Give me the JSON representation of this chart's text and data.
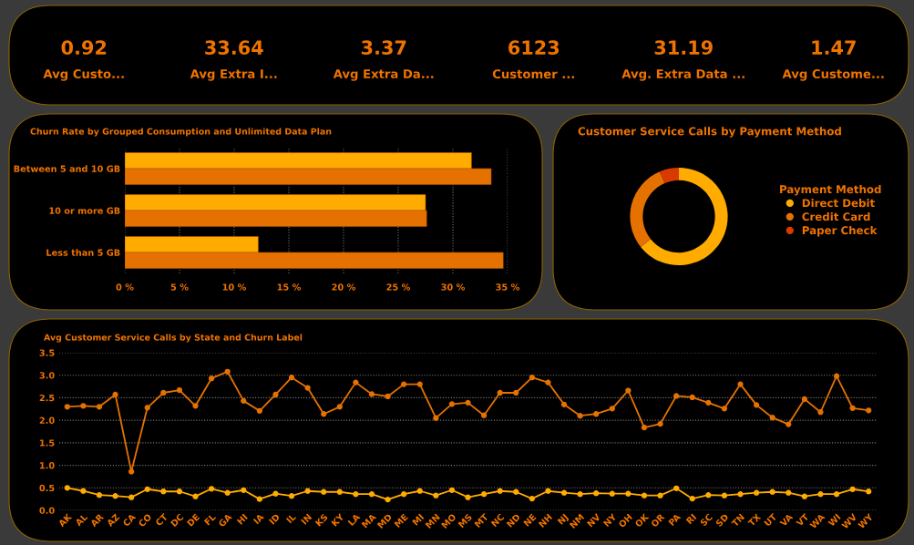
{
  "chart_data": [
    {
      "type": "other",
      "annotations": [
        "0.92",
        "Avg Custo...",
        "33.64",
        "Avg Extra I...",
        "3.37",
        "Avg Extra Da...",
        "6123",
        "Customer ...",
        "31.19",
        "Avg. Extra Data ...",
        "1.47",
        "Avg Custome..."
      ]
    },
    {
      "type": "bar",
      "orientation": "horizontal",
      "title": "Churn Rate by Grouped Consumption and Unlimited Data Plan",
      "categories": [
        "Between 5 and 10 GB",
        "10 or more GB",
        "Less than 5 GB"
      ],
      "series": [
        {
          "color": "#ffab00",
          "values": [
            31.7,
            27.5,
            12.2
          ]
        },
        {
          "color": "#e57200",
          "values": [
            33.5,
            27.6,
            34.6
          ]
        }
      ],
      "xlim": [
        0,
        35
      ],
      "xticks": [
        {
          "value": 0,
          "label": "0 %"
        },
        {
          "value": 5,
          "label": "5 %"
        },
        {
          "value": 10,
          "label": "10 %"
        },
        {
          "value": 15,
          "label": "15 %"
        },
        {
          "value": 20,
          "label": "20 %"
        },
        {
          "value": 25,
          "label": "25 %"
        },
        {
          "value": 30,
          "label": "30 %"
        },
        {
          "value": 35,
          "label": "35 %"
        }
      ],
      "grid": "x"
    },
    {
      "type": "donut",
      "title": "Customer Service Calls by Payment Method",
      "legend_title": "Payment Method",
      "categories": [
        "Direct Debit",
        "Credit Card",
        "Paper Check"
      ],
      "values": [
        64.3,
        29.3,
        6.4
      ],
      "colors": [
        "#ffab00",
        "#e57200",
        "#d93a00"
      ],
      "legend": "right"
    },
    {
      "type": "line",
      "title": "Avg Customer Service Calls by State and Churn Label",
      "categories": [
        "AK",
        "AL",
        "AR",
        "AZ",
        "CA",
        "CO",
        "CT",
        "DC",
        "DE",
        "FL",
        "GA",
        "HI",
        "IA",
        "ID",
        "IL",
        "IN",
        "KS",
        "KY",
        "LA",
        "MA",
        "MD",
        "ME",
        "MI",
        "MN",
        "MO",
        "MS",
        "MT",
        "NC",
        "ND",
        "NE",
        "NH",
        "NJ",
        "NM",
        "NV",
        "NY",
        "OH",
        "OK",
        "OR",
        "PA",
        "RI",
        "SC",
        "SD",
        "TN",
        "TX",
        "UT",
        "VA",
        "VT",
        "WA",
        "WI",
        "WV",
        "WY"
      ],
      "series": [
        {
          "color": "#e57200",
          "values": [
            2.3,
            2.32,
            2.3,
            2.57,
            0.86,
            2.28,
            2.61,
            2.67,
            2.32,
            2.93,
            3.08,
            2.43,
            2.21,
            2.57,
            2.95,
            2.72,
            2.14,
            2.3,
            2.84,
            2.58,
            2.53,
            2.8,
            2.8,
            2.05,
            2.36,
            2.39,
            2.11,
            2.61,
            2.61,
            2.95,
            2.84,
            2.35,
            2.1,
            2.14,
            2.26,
            2.66,
            1.84,
            1.92,
            2.54,
            2.51,
            2.39,
            2.26,
            2.8,
            2.34,
            2.06,
            1.91,
            2.47,
            2.18,
            2.98,
            2.27,
            2.22
          ]
        },
        {
          "color": "#ffab00",
          "values": [
            0.5,
            0.43,
            0.34,
            0.32,
            0.29,
            0.47,
            0.42,
            0.42,
            0.31,
            0.48,
            0.39,
            0.45,
            0.25,
            0.37,
            0.32,
            0.43,
            0.41,
            0.41,
            0.36,
            0.36,
            0.24,
            0.36,
            0.43,
            0.33,
            0.45,
            0.29,
            0.36,
            0.43,
            0.41,
            0.26,
            0.43,
            0.39,
            0.36,
            0.38,
            0.37,
            0.37,
            0.33,
            0.33,
            0.49,
            0.26,
            0.34,
            0.33,
            0.36,
            0.39,
            0.41,
            0.39,
            0.31,
            0.36,
            0.36,
            0.47,
            0.42
          ]
        }
      ],
      "ylim": [
        0,
        3.5
      ],
      "yticks": [
        {
          "value": 0,
          "label": "0.0"
        },
        0.5,
        {
          "value": 1,
          "label": "1.0"
        },
        1.5,
        {
          "value": 2,
          "label": "2.0"
        },
        2.5,
        {
          "value": 3,
          "label": "3.0"
        },
        3.5
      ],
      "grid": "y",
      "marker": "circle"
    }
  ]
}
